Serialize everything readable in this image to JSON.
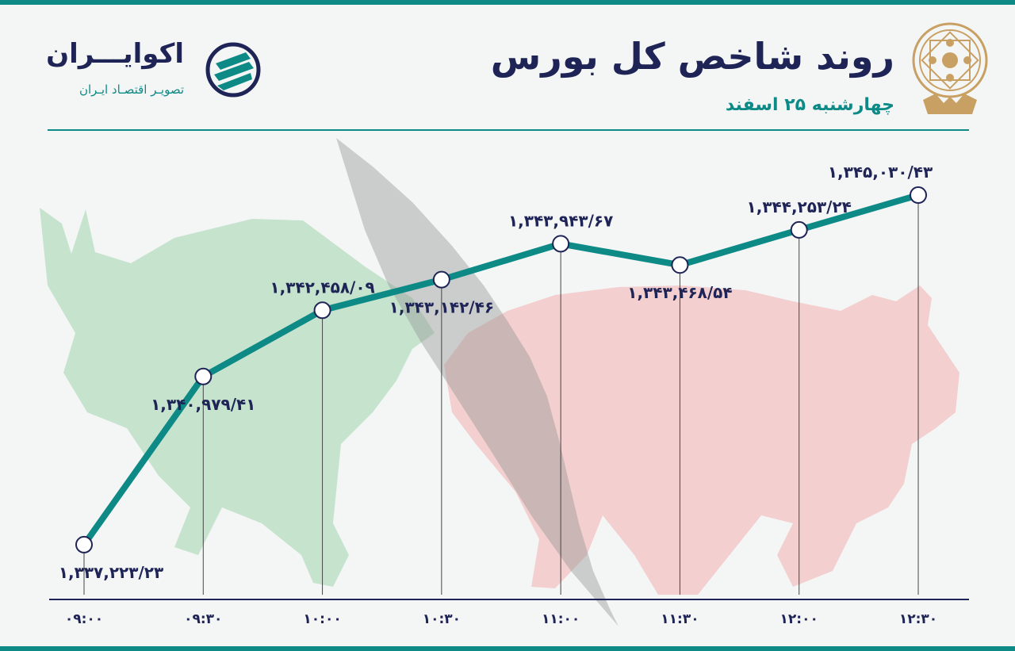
{
  "header": {
    "title": "روند شاخص کل بورس",
    "subtitle": "چهارشنبه ۲۵ اسفند"
  },
  "brand": {
    "name": "اکوایـــران",
    "tagline": "تصویـر اقتصـاد ایـران"
  },
  "colors": {
    "accent": "#0d8a86",
    "text": "#1f2456",
    "bull": "#b7dcc0",
    "bear": "#f2c6c6",
    "seal": "#c9a063"
  },
  "icons": {
    "seal": "stock-exchange-seal-icon",
    "brand": "ecoiran-logo-icon",
    "bull": "bull-silhouette-icon",
    "bear": "bear-silhouette-icon"
  },
  "chart_data": {
    "type": "line",
    "x": [
      "۰۹:۰۰",
      "۰۹:۳۰",
      "۱۰:۰۰",
      "۱۰:۳۰",
      "۱۱:۰۰",
      "۱۱:۳۰",
      "۱۲:۰۰",
      "۱۲:۳۰"
    ],
    "values": [
      1337223.23,
      1340979.41,
      1342458.09,
      1343142.46,
      1343943.67,
      1343468.54,
      1344253.24,
      1345030.43
    ],
    "labels": [
      "۱,۳۳۷,۲۲۳/۲۳",
      "۱,۳۴۰,۹۷۹/۴۱",
      "۱,۳۴۲,۴۵۸/۰۹",
      "۱,۳۴۳,۱۴۲/۴۶",
      "۱,۳۴۳,۹۴۳/۶۷",
      "۱,۳۴۳,۴۶۸/۵۴",
      "۱,۳۴۴,۲۵۳/۲۴",
      "۱,۳۴۵,۰۳۰/۴۳"
    ],
    "label_position": [
      "below",
      "below",
      "above",
      "below",
      "above",
      "below",
      "above",
      "above"
    ],
    "ylim": [
      1336000,
      1346200
    ],
    "grid": false,
    "title": "روند شاخص کل بورس",
    "xlabel": "",
    "ylabel": ""
  }
}
